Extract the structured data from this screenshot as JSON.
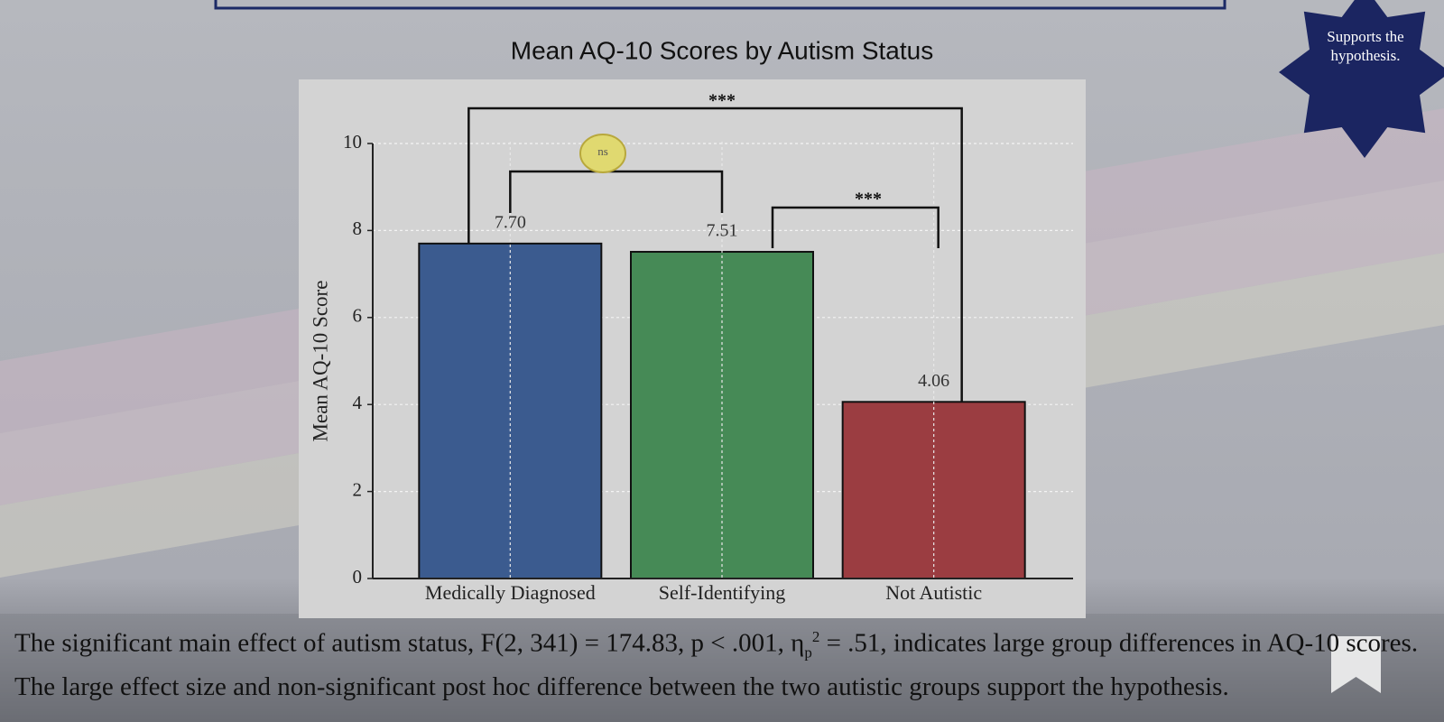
{
  "chart_data": {
    "type": "bar",
    "title": "Mean AQ-10 Scores by Autism Status",
    "ylabel": "Mean AQ-10 Score",
    "categories": [
      "Medically Diagnosed",
      "Self-Identifying",
      "Not Autistic"
    ],
    "values": [
      7.7,
      7.51,
      4.06
    ],
    "value_labels": [
      "7.70",
      "7.51",
      "4.06"
    ],
    "colors": [
      "#3b5b8f",
      "#468a56",
      "#9b3d41"
    ],
    "ylim": [
      0,
      10
    ],
    "yticks": [
      0,
      2,
      4,
      6,
      8,
      10
    ],
    "grid": true,
    "annotations": [
      "***",
      "ns",
      "***"
    ]
  },
  "badge": "Supports the hypothesis.",
  "body": {
    "paragraph_1": [
      "The significant main effect of autism status, F(2, 341) = 174.83, p < .001, η",
      "p",
      "2",
      " = .51, indicates large group differences in AQ-10 scores."
    ],
    "paragraph_2": "The large effect size and non-significant post hoc difference between the two autistic groups support the hypothesis."
  }
}
